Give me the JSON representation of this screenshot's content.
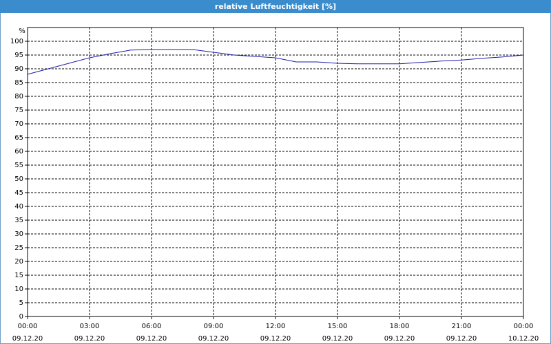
{
  "chart_data": {
    "type": "line",
    "title": "relative Luftfeuchtigkeit [%]",
    "y_label": "%",
    "x": [
      0,
      1,
      2,
      3,
      4,
      5,
      6,
      7,
      8,
      9,
      10,
      11,
      12,
      13,
      14,
      15,
      16,
      17,
      18,
      19,
      20,
      21,
      22,
      23,
      24
    ],
    "series": [
      {
        "color": "#1a1aa8",
        "values": [
          88,
          90,
          92,
          94,
          95.5,
          96.8,
          97,
          97,
          97,
          96,
          95,
          94.5,
          94,
          92.5,
          92.5,
          92,
          91.8,
          91.8,
          91.8,
          92.3,
          92.8,
          93.2,
          93.8,
          94.3,
          95
        ]
      }
    ],
    "xlim": [
      0,
      24
    ],
    "xticks": [
      {
        "value": 0,
        "label": "00:00\n09.12.20"
      },
      {
        "value": 3,
        "label": "03:00\n09.12.20"
      },
      {
        "value": 6,
        "label": "06:00\n09.12.20"
      },
      {
        "value": 9,
        "label": "09:00\n09.12.20"
      },
      {
        "value": 12,
        "label": "12:00\n09.12.20"
      },
      {
        "value": 15,
        "label": "15:00\n09.12.20"
      },
      {
        "value": 18,
        "label": "18:00\n09.12.20"
      },
      {
        "value": 21,
        "label": "21:00\n09.12.20"
      },
      {
        "value": 24,
        "label": "00:00\n10.12.20"
      }
    ],
    "ylim": [
      0,
      105
    ],
    "yticks": [
      0,
      5,
      10,
      15,
      20,
      25,
      30,
      35,
      40,
      45,
      50,
      55,
      60,
      65,
      70,
      75,
      80,
      85,
      90,
      95,
      100
    ],
    "grid": true
  }
}
